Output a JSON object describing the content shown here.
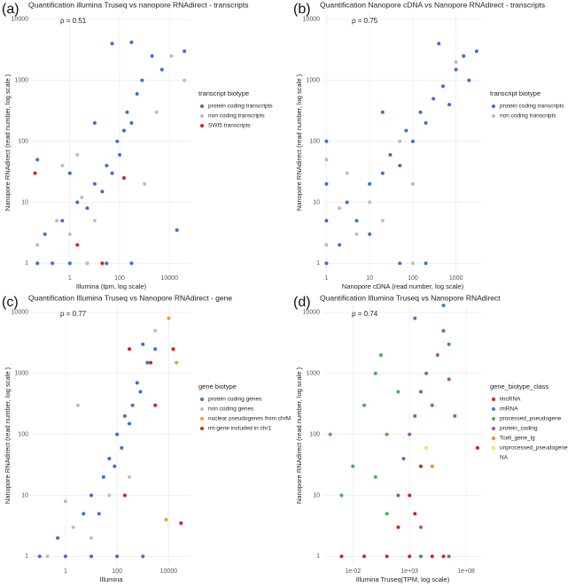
{
  "chart_data": [
    {
      "type": "scatter",
      "panel_label": "(a)",
      "title": "Quantification illumina Truseq vs nanopore RNAdirect - transcripts",
      "annotation": "ρ = 0.51",
      "x_label": "Illumina (tpm, log scale)",
      "y_label": "Nanopore RNAdirect (read number, log scale )",
      "legend_title": "transcript biotype",
      "xscale": "log",
      "yscale": "log",
      "grid": true,
      "xlim": [
        0.03,
        70000
      ],
      "ylim": [
        0.7,
        13000
      ],
      "xticks": [
        1,
        100,
        10000
      ],
      "yticks": [
        1,
        10,
        100,
        1000,
        10000
      ],
      "series": [
        {
          "name": "protein coding transcripts",
          "color": "#3b6fd4",
          "x": [
            0.05,
            0.2,
            1,
            5,
            30,
            300,
            0.1,
            0.5,
            2,
            5,
            10,
            20,
            30,
            50,
            80,
            100,
            150,
            200,
            300,
            500,
            800,
            2000,
            5000,
            40000,
            300,
            50,
            10,
            1,
            0.05,
            20000
          ],
          "y": [
            1,
            1,
            1,
            1,
            1,
            1,
            3,
            5,
            10,
            8,
            20,
            15,
            40,
            30,
            100,
            60,
            150,
            300,
            200,
            600,
            1000,
            2500,
            1500,
            3000,
            4200,
            4000,
            200,
            30,
            50,
            3.5
          ]
        },
        {
          "name": "non coding transcripts",
          "color": "#bdbdbd",
          "x": [
            0.05,
            0.3,
            1,
            3,
            0.5,
            2,
            10,
            3000,
            12000,
            40000,
            5,
            1000
          ],
          "y": [
            2,
            5,
            3,
            12,
            40,
            60,
            5,
            300,
            2500,
            1000,
            1,
            20
          ]
        },
        {
          "name": "SWI5 transcripts",
          "color": "#d62020",
          "x": [
            2,
            20,
            150,
            0.04
          ],
          "y": [
            2,
            1,
            25,
            30
          ]
        }
      ]
    },
    {
      "type": "scatter",
      "panel_label": "(b)",
      "title": "Quantification Nanopore cDNA vs Nanopore RNAdirect - transcripts",
      "annotation": "ρ = 0.75",
      "x_label": "Nanopore cDNA (read number, log scale)",
      "y_label": "Nanopore RNAdirect (read number, log scale )",
      "legend_title": "transcript biotype",
      "xscale": "log",
      "yscale": "log",
      "grid": true,
      "xlim": [
        0.85,
        4000
      ],
      "ylim": [
        0.7,
        13000
      ],
      "xticks": [
        1,
        10,
        100,
        1000
      ],
      "yticks": [
        1,
        10,
        100,
        1000,
        10000
      ],
      "series": [
        {
          "name": "protein coding transcripts",
          "color": "#3b6fd4",
          "x": [
            1,
            1,
            1,
            1,
            2,
            3,
            5,
            10,
            10,
            20,
            30,
            50,
            70,
            100,
            150,
            200,
            300,
            500,
            700,
            1000,
            1500,
            2000,
            3000,
            400,
            50,
            200,
            20
          ],
          "y": [
            1,
            5,
            20,
            100,
            2,
            10,
            5,
            20,
            3,
            30,
            60,
            40,
            150,
            100,
            300,
            200,
            500,
            800,
            400,
            1500,
            2500,
            1000,
            3000,
            4000,
            1,
            1,
            300
          ]
        },
        {
          "name": "non coding transcripts",
          "color": "#bdbdbd",
          "x": [
            1,
            1,
            2,
            5,
            3,
            10,
            20,
            50,
            100,
            1000,
            100
          ],
          "y": [
            2,
            50,
            8,
            3,
            30,
            10,
            5,
            100,
            20,
            2000,
            1
          ]
        }
      ]
    },
    {
      "type": "scatter",
      "panel_label": "(c)",
      "title": "Quantification Illumina Truseq vs Nanopore RNAdirect - gene",
      "annotation": "ρ = 0.77",
      "x_label": "Illumina",
      "y_label": "Nanopore RNAdirect (read number, log scale )",
      "legend_title": "gene biotype",
      "xscale": "log",
      "yscale": "log",
      "grid": true,
      "xlim": [
        0.05,
        70000
      ],
      "ylim": [
        0.7,
        13000
      ],
      "xticks": [
        1,
        100,
        10000
      ],
      "yticks": [
        1,
        10,
        100,
        1000,
        10000
      ],
      "series": [
        {
          "name": "protein coding genes",
          "color": "#3b6fd4",
          "x": [
            0.1,
            1,
            10,
            100,
            1000,
            0.5,
            5,
            10,
            20,
            30,
            50,
            80,
            100,
            150,
            200,
            300,
            400,
            600,
            800,
            1500,
            3000,
            1000
          ],
          "y": [
            1,
            1,
            1,
            1,
            1,
            2,
            5,
            10,
            5,
            20,
            40,
            30,
            100,
            60,
            200,
            150,
            300,
            700,
            500,
            1500,
            2500,
            3000
          ]
        },
        {
          "name": "non coding genes",
          "color": "#bdbdbd",
          "x": [
            0.2,
            2,
            10,
            1,
            50,
            300,
            3000,
            3
          ],
          "y": [
            1,
            3,
            2,
            8,
            10,
            20,
            5000,
            300
          ]
        },
        {
          "name": "nuclear pseudogenes from chrM",
          "color": "#f0a020",
          "x": [
            10000,
            15000,
            20000,
            8000
          ],
          "y": [
            8000,
            2500,
            1500,
            4
          ]
        },
        {
          "name": "mt-gene included in chr1",
          "color": "#d62020",
          "x": [
            300,
            2000,
            15000,
            30000,
            3000,
            200
          ],
          "y": [
            2500,
            1500,
            2500,
            3.5,
            300,
            10
          ]
        }
      ]
    },
    {
      "type": "scatter",
      "panel_label": "(d)",
      "title": "Quantification Illumina Truseq vs Nanopore RNAdirect",
      "annotation": "ρ = 0.74",
      "x_label": "Illumina Truseq(TPM, log scale)",
      "y_label": "Nanopore RNAdirect (read number, log scale )",
      "legend_title": "gene_biotype_class",
      "xscale": "log",
      "yscale": "log",
      "grid": true,
      "xlim": [
        2.5e-05,
        2500000000
      ],
      "ylim": [
        0.7,
        13000
      ],
      "xticks": [
        {
          "value": 0.01,
          "label": "1e-02"
        },
        {
          "value": 1000,
          "label": "1e+03"
        },
        {
          "value": 100000000,
          "label": "1e+08"
        }
      ],
      "yticks": [
        1,
        10,
        100,
        1000,
        10000
      ],
      "series": [
        {
          "name": "lincRNA",
          "color": "#d62020",
          "x": [
            0.001,
            0.1,
            10,
            1000,
            100000,
            1000000,
            100,
            1000,
            10000,
            3000,
            1000000000
          ],
          "y": [
            1,
            1,
            1,
            1,
            1,
            1,
            3,
            10,
            30,
            5,
            60
          ]
        },
        {
          "name": "miRNA",
          "color": "#3f7fc8",
          "x": [
            1000000,
            3000000,
            10000
          ],
          "y": [
            13000,
            3000,
            1
          ]
        },
        {
          "name": "processed_pseudogene",
          "color": "#4caf50",
          "x": [
            0.0001,
            0.01,
            0.1,
            1,
            10,
            1,
            100,
            0.001,
            10,
            3
          ],
          "y": [
            100,
            30,
            300,
            1000,
            100,
            20,
            500,
            10,
            5,
            2000
          ]
        },
        {
          "name": "protein_coding",
          "color": "#9c4fb0",
          "x": [
            100,
            300,
            1000,
            3000,
            10000,
            30000,
            100000,
            300000,
            1000000,
            3000000,
            10000000,
            10000,
            3000,
            3000000
          ],
          "y": [
            10,
            40,
            100,
            200,
            500,
            1000,
            300,
            2000,
            5000,
            800,
            200,
            3,
            8000,
            1
          ]
        },
        {
          "name": "Tcell_gene_lg",
          "color": "#f08c1e",
          "x": [
            100000
          ],
          "y": [
            30
          ]
        },
        {
          "name": "unprocessed_pseudogene",
          "color": "#f5e642",
          "x": [
            30000
          ],
          "y": [
            60
          ]
        },
        {
          "name": "NA",
          "color": null,
          "x": [],
          "y": []
        }
      ]
    }
  ]
}
